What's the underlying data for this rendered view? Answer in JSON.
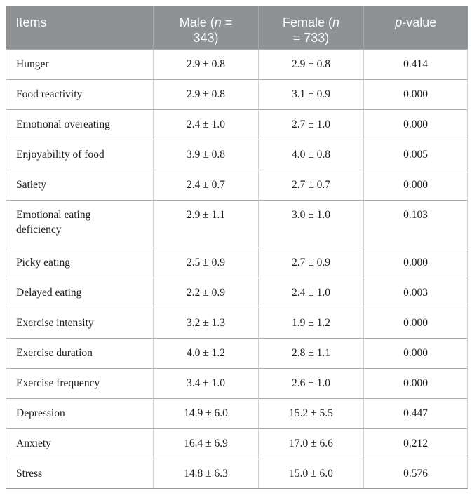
{
  "table": {
    "colors": {
      "header_bg": "#8e9295",
      "header_text": "#ffffff",
      "row_border": "#a8aaac",
      "column_border": "#ccced0",
      "bottom_border": "#97999b",
      "body_text": "#1b1b1b"
    },
    "header": {
      "items": "Items",
      "male": {
        "pre": "Male (",
        "n": "n",
        "post": " =",
        "line2": "343)"
      },
      "female": {
        "pre": "Female (",
        "n": "n",
        "line2": "= 733)"
      },
      "pvalue": {
        "p": "p",
        "suffix": "-value"
      }
    },
    "rows": [
      {
        "item": "Hunger",
        "male": "2.9 ± 0.8",
        "female": "2.9 ± 0.8",
        "p": "0.414"
      },
      {
        "item": "Food reactivity",
        "male": "2.9 ± 0.8",
        "female": "3.1 ± 0.9",
        "p": "0.000"
      },
      {
        "item": "Emotional overeating",
        "male": "2.4 ± 1.0",
        "female": "2.7 ± 1.0",
        "p": "0.000"
      },
      {
        "item": "Enjoyability of food",
        "male": "3.9 ± 0.8",
        "female": "4.0 ± 0.8",
        "p": "0.005"
      },
      {
        "item": "Satiety",
        "male": "2.4 ± 0.7",
        "female": "2.7 ± 0.7",
        "p": "0.000"
      },
      {
        "item": "Emotional eating deficiency",
        "male": "2.9 ± 1.1",
        "female": "3.0 ± 1.0",
        "p": "0.103"
      },
      {
        "item": "Picky eating",
        "male": "2.5 ± 0.9",
        "female": "2.7 ± 0.9",
        "p": "0.000"
      },
      {
        "item": "Delayed eating",
        "male": "2.2 ± 0.9",
        "female": "2.4 ± 1.0",
        "p": "0.003"
      },
      {
        "item": "Exercise intensity",
        "male": "3.2 ± 1.3",
        "female": "1.9 ± 1.2",
        "p": "0.000"
      },
      {
        "item": "Exercise duration",
        "male": "4.0 ± 1.2",
        "female": "2.8 ± 1.1",
        "p": "0.000"
      },
      {
        "item": "Exercise frequency",
        "male": "3.4 ± 1.0",
        "female": "2.6 ± 1.0",
        "p": "0.000"
      },
      {
        "item": "Depression",
        "male": "14.9 ± 6.0",
        "female": "15.2 ± 5.5",
        "p": "0.447"
      },
      {
        "item": "Anxiety",
        "male": "16.4 ± 6.9",
        "female": "17.0 ± 6.6",
        "p": "0.212"
      },
      {
        "item": "Stress",
        "male": "14.8 ± 6.3",
        "female": "15.0 ± 6.0",
        "p": "0.576"
      }
    ]
  }
}
